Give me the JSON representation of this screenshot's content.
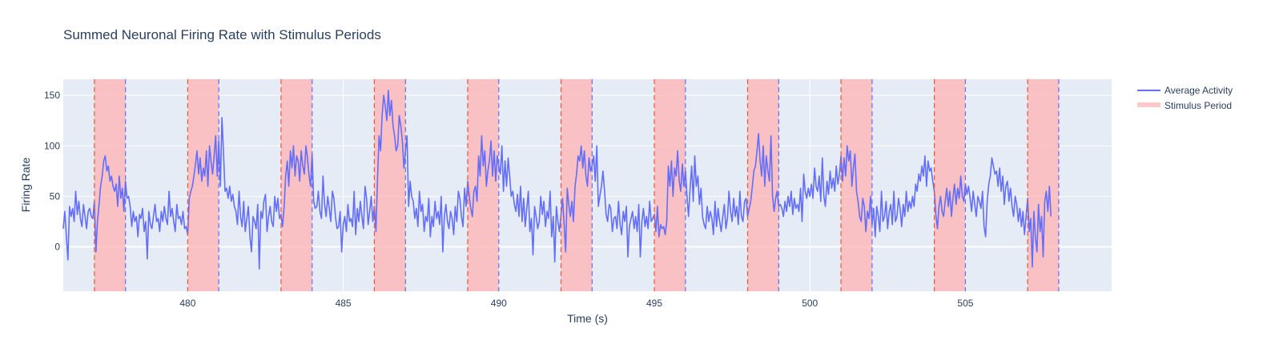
{
  "chart_data": {
    "type": "line",
    "title": "Summed Neuronal Firing Rate with Stimulus Periods",
    "xlabel": "Time (s)",
    "ylabel": "Firing Rate",
    "xlim": [
      476,
      509.7
    ],
    "ylim": [
      -44,
      166
    ],
    "x_ticks": [
      480,
      485,
      490,
      495,
      500,
      505
    ],
    "y_ticks": [
      0,
      50,
      100,
      150
    ],
    "grid": true,
    "legend_position": "top-right",
    "colors": {
      "line": "#636efa",
      "stimulus_fill": "#ffb3b3",
      "stimulus_legend": "#ffc9c9",
      "onset_line": "#ef553b",
      "offset_line": "#636efa",
      "plot_bg": "#e5ecf6",
      "grid": "#ffffff"
    },
    "series": [
      {
        "name": "Average Activity",
        "sample_step": 0.05,
        "x_start": 476,
        "values": [
          18,
          35,
          10,
          -13,
          40,
          30,
          38,
          25,
          55,
          32,
          45,
          28,
          20,
          42,
          30,
          18,
          35,
          38,
          30,
          28,
          45,
          -5,
          25,
          42,
          60,
          70,
          85,
          90,
          75,
          80,
          65,
          70,
          60,
          55,
          62,
          40,
          70,
          48,
          58,
          35,
          65,
          48,
          50,
          40,
          20,
          35,
          25,
          30,
          10,
          32,
          28,
          38,
          15,
          25,
          -12,
          35,
          22,
          18,
          30,
          42,
          25,
          28,
          15,
          35,
          25,
          40,
          28,
          22,
          55,
          30,
          38,
          25,
          15,
          42,
          28,
          30,
          22,
          35,
          18,
          20,
          12,
          48,
          55,
          60,
          70,
          82,
          95,
          72,
          88,
          65,
          78,
          70,
          95,
          60,
          100,
          85,
          72,
          90,
          110,
          70,
          105,
          60,
          128,
          95,
          55,
          58,
          48,
          60,
          45,
          52,
          40,
          35,
          22,
          55,
          30,
          20,
          45,
          15,
          28,
          40,
          10,
          -5,
          30,
          25,
          18,
          42,
          -22,
          35,
          28,
          45,
          52,
          15,
          30,
          40,
          25,
          20,
          50,
          35,
          48,
          28,
          32,
          20,
          40,
          70,
          85,
          60,
          95,
          78,
          100,
          70,
          90,
          85,
          65,
          95,
          80,
          72,
          100,
          88,
          70,
          60,
          92,
          45,
          38,
          40,
          55,
          35,
          28,
          70,
          42,
          30,
          50,
          38,
          25,
          55,
          48,
          30,
          18,
          20,
          35,
          -5,
          22,
          30,
          15,
          42,
          25,
          28,
          20,
          55,
          12,
          38,
          25,
          45,
          30,
          18,
          60,
          48,
          22,
          35,
          50,
          25,
          40,
          15,
          65,
          110,
          95,
          130,
          150,
          140,
          125,
          155,
          130,
          145,
          120,
          110,
          95,
          100,
          130,
          120,
          105,
          78,
          95,
          110,
          40,
          65,
          50,
          45,
          28,
          38,
          20,
          55,
          35,
          42,
          15,
          30,
          25,
          48,
          10,
          30,
          20,
          45,
          28,
          35,
          22,
          50,
          -5,
          30,
          42,
          25,
          18,
          35,
          28,
          12,
          40,
          25,
          55,
          48,
          30,
          20,
          58,
          40,
          65,
          50,
          38,
          30,
          55,
          60,
          45,
          90,
          70,
          110,
          80,
          95,
          60,
          75,
          85,
          105,
          70,
          95,
          65,
          90,
          80,
          72,
          100,
          55,
          85,
          60,
          88,
          70,
          50,
          55,
          42,
          35,
          52,
          30,
          60,
          25,
          48,
          20,
          38,
          55,
          15,
          28,
          -8,
          40,
          30,
          18,
          25,
          50,
          32,
          45,
          20,
          35,
          28,
          55,
          10,
          30,
          -15,
          40,
          25,
          15,
          32,
          48,
          22,
          -5,
          58,
          42,
          30,
          45,
          25,
          60,
          72,
          90,
          85,
          100,
          78,
          95,
          70,
          60,
          88,
          75,
          80,
          90,
          65,
          100,
          40,
          50,
          60,
          75,
          55,
          32,
          25,
          42,
          38,
          15,
          28,
          30,
          18,
          45,
          22,
          12,
          35,
          25,
          40,
          -10,
          20,
          28,
          35,
          18,
          30,
          15,
          42,
          -10,
          25,
          38,
          20,
          30,
          18,
          45,
          25,
          28,
          32,
          15,
          40,
          10,
          22,
          18,
          20,
          12,
          25,
          80,
          60,
          85,
          50,
          78,
          70,
          95,
          65,
          55,
          82,
          60,
          75,
          50,
          30,
          58,
          80,
          45,
          90,
          60,
          70,
          42,
          58,
          30,
          22,
          18,
          40,
          25,
          35,
          28,
          12,
          45,
          20,
          38,
          25,
          15,
          30,
          42,
          18,
          28,
          55,
          35,
          25,
          48,
          30,
          40,
          22,
          55,
          30,
          25,
          45,
          48,
          30,
          38,
          45,
          60,
          75,
          80,
          95,
          112,
          85,
          70,
          100,
          60,
          90,
          75,
          65,
          110,
          50,
          35,
          48,
          55,
          40,
          42,
          38,
          30,
          45,
          35,
          50,
          40,
          55,
          32,
          48,
          38,
          42,
          35,
          58,
          25,
          72,
          55,
          48,
          58,
          50,
          62,
          48,
          78,
          60,
          55,
          70,
          45,
          88,
          50,
          40,
          65,
          52,
          75,
          58,
          68,
          55,
          80,
          62,
          72,
          90,
          65,
          88,
          70,
          100,
          85,
          95,
          60,
          78,
          92,
          55,
          45,
          30,
          25,
          48,
          40,
          15,
          35,
          28,
          50,
          22,
          38,
          10,
          40,
          30,
          15,
          55,
          25,
          30,
          45,
          18,
          35,
          42,
          22,
          55,
          25,
          30,
          48,
          38,
          20,
          42,
          30,
          55,
          35,
          45,
          38,
          50,
          40,
          62,
          55,
          72,
          65,
          80,
          70,
          90,
          60,
          85,
          75,
          78,
          65,
          55,
          32,
          18,
          40,
          50,
          35,
          30,
          45,
          58,
          40,
          55,
          30,
          48,
          62,
          42,
          58,
          48,
          70,
          50,
          45,
          62,
          52,
          60,
          48,
          35,
          55,
          42,
          30,
          50,
          45,
          38,
          55,
          20,
          10,
          45,
          62,
          70,
          88,
          80,
          72,
          75,
          60,
          78,
          55,
          70,
          42,
          60,
          65,
          45,
          58,
          40,
          30,
          50,
          42,
          25,
          38,
          20,
          35,
          12,
          30,
          48,
          15,
          28,
          -20,
          35,
          10,
          -5,
          42,
          15,
          30,
          -10,
          45,
          55,
          35,
          60,
          30
        ]
      },
      {
        "name": "Stimulus Period",
        "intervals": [
          [
            477,
            478
          ],
          [
            480,
            481
          ],
          [
            483,
            484
          ],
          [
            486,
            487
          ],
          [
            489,
            490
          ],
          [
            492,
            493
          ],
          [
            495,
            496
          ],
          [
            498,
            499
          ],
          [
            501,
            502
          ],
          [
            504,
            505
          ],
          [
            507,
            508
          ]
        ]
      }
    ]
  }
}
